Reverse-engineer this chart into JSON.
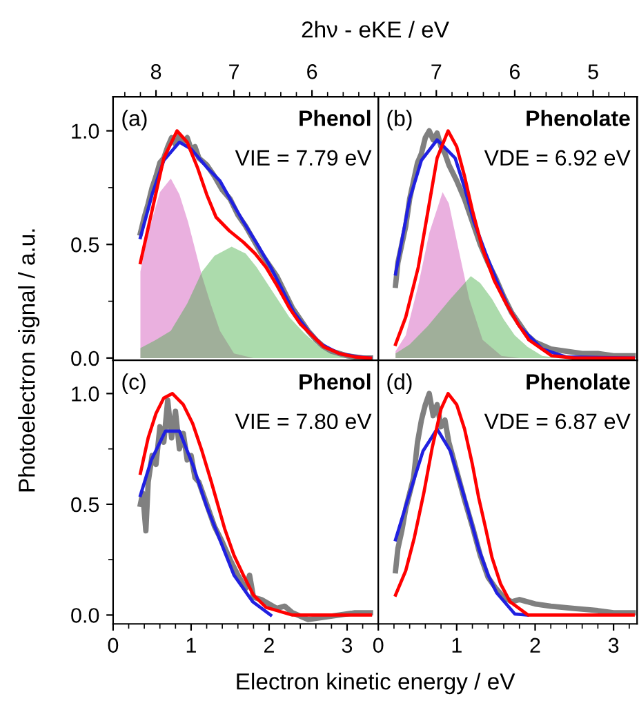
{
  "chart_data": [
    {
      "type": "line",
      "x2label": "2hν - eKE / eV",
      "ylabel": "Photoelectron signal / a.u.",
      "tick_labels": "y",
      "xlim": [
        0,
        3.4
      ],
      "ylim": [
        -0.01,
        1.15
      ],
      "yticks": [
        {
          "value": 0,
          "label": "0.0"
        },
        {
          "value": 0.25,
          "label": null
        },
        {
          "value": 0.5,
          "label": "0.5"
        },
        {
          "value": 0.75,
          "label": null
        },
        {
          "value": 1,
          "label": "1.0"
        }
      ],
      "x2lim": [
        8.55,
        5.15
      ],
      "x2ticks": [
        {
          "value": 8.4,
          "label": null
        },
        {
          "value": 8.2,
          "label": null
        },
        8,
        {
          "value": 7.8,
          "label": null
        },
        {
          "value": 7.6,
          "label": null
        },
        {
          "value": 7.4,
          "label": null
        },
        {
          "value": 7.2,
          "label": null
        },
        7,
        {
          "value": 6.8,
          "label": null
        },
        {
          "value": 6.6,
          "label": null
        },
        {
          "value": 6.4,
          "label": null
        },
        {
          "value": 6.2,
          "label": null
        },
        6,
        {
          "value": 5.8,
          "label": null
        },
        {
          "value": 5.6,
          "label": null
        },
        {
          "value": 5.4,
          "label": null
        },
        {
          "value": 5.2,
          "label": null
        }
      ],
      "annotations": [
        "(a)",
        "Phenol",
        "VIE = 7.79 eV"
      ],
      "series": [
        {
          "type": "area",
          "color": "#d050b8",
          "x": [
            0.35,
            0.45,
            0.6,
            0.74,
            0.85,
            0.96,
            1.05,
            1.14,
            1.25,
            1.37,
            1.55,
            1.8
          ],
          "values": [
            0.38,
            0.55,
            0.73,
            0.79,
            0.72,
            0.6,
            0.48,
            0.36,
            0.24,
            0.12,
            0.02,
            0
          ]
        },
        {
          "type": "area",
          "color": "#48b048",
          "x": [
            0.35,
            0.55,
            0.74,
            0.95,
            1.14,
            1.3,
            1.52,
            1.7,
            1.84,
            2.05,
            2.26,
            2.45,
            2.61,
            2.9,
            3.2
          ],
          "values": [
            0.044,
            0.08,
            0.12,
            0.24,
            0.38,
            0.45,
            0.49,
            0.46,
            0.4,
            0.29,
            0.18,
            0.11,
            0.06,
            0.01,
            0
          ]
        },
        {
          "color": "#808080",
          "x": [
            0.35,
            0.4,
            0.45,
            0.5,
            0.55,
            0.6,
            0.65,
            0.7,
            0.75,
            0.8,
            0.85,
            0.9,
            0.95,
            1.0,
            1.05,
            1.1,
            1.2,
            1.3,
            1.4,
            1.5,
            1.6,
            1.7,
            1.8,
            1.9,
            2.0,
            2.1,
            2.2,
            2.3,
            2.4,
            2.5,
            2.6,
            2.7,
            2.8,
            2.9,
            3.0,
            3.2,
            3.3
          ],
          "values": [
            0.55,
            0.62,
            0.68,
            0.75,
            0.8,
            0.86,
            0.88,
            0.93,
            0.97,
            0.94,
            0.98,
            0.95,
            0.97,
            0.92,
            0.93,
            0.88,
            0.85,
            0.8,
            0.74,
            0.7,
            0.63,
            0.58,
            0.52,
            0.46,
            0.41,
            0.36,
            0.29,
            0.22,
            0.17,
            0.12,
            0.08,
            0.05,
            0.03,
            0.02,
            0.01,
            0,
            0
          ]
        },
        {
          "color": "#2020e0",
          "x": [
            0.35,
            0.5,
            0.65,
            0.85,
            1.0,
            1.2,
            1.37,
            1.5,
            1.67,
            1.85,
            2.02,
            2.17,
            2.32,
            2.5,
            2.67,
            2.9,
            3.14,
            3.3
          ],
          "values": [
            0.53,
            0.72,
            0.87,
            0.95,
            0.92,
            0.84,
            0.78,
            0.7,
            0.6,
            0.5,
            0.4,
            0.3,
            0.2,
            0.12,
            0.06,
            0.02,
            0.005,
            0
          ]
        },
        {
          "color": "#ff0000",
          "x": [
            0.35,
            0.5,
            0.65,
            0.82,
            0.95,
            1.08,
            1.2,
            1.32,
            1.49,
            1.67,
            1.82,
            1.96,
            2.1,
            2.26,
            2.4,
            2.55,
            2.7,
            2.9,
            3.1,
            3.3
          ],
          "values": [
            0.42,
            0.65,
            0.88,
            1.0,
            0.95,
            0.84,
            0.72,
            0.62,
            0.56,
            0.51,
            0.46,
            0.4,
            0.32,
            0.22,
            0.15,
            0.1,
            0.05,
            0.02,
            0.005,
            0
          ]
        }
      ]
    },
    {
      "type": "line",
      "tick_labels": false,
      "xlim": [
        0,
        3.3
      ],
      "ylim": [
        -0.01,
        1.15
      ],
      "x2lim": [
        7.74,
        4.44
      ],
      "x2ticks": [
        {
          "value": 7.6,
          "label": null
        },
        {
          "value": 7.4,
          "label": null
        },
        {
          "value": 7.2,
          "label": null
        },
        7,
        {
          "value": 6.8,
          "label": null
        },
        {
          "value": 6.6,
          "label": null
        },
        {
          "value": 6.4,
          "label": null
        },
        {
          "value": 6.2,
          "label": null
        },
        6,
        {
          "value": 5.8,
          "label": null
        },
        {
          "value": 5.6,
          "label": null
        },
        {
          "value": 5.4,
          "label": null
        },
        {
          "value": 5.2,
          "label": null
        },
        5,
        {
          "value": 4.8,
          "label": null
        },
        {
          "value": 4.6,
          "label": null
        }
      ],
      "annotations": [
        "(b)",
        "Phenolate",
        "VDE = 6.92 eV"
      ],
      "series": [
        {
          "type": "area",
          "color": "#d050b8",
          "x": [
            0.22,
            0.35,
            0.51,
            0.65,
            0.82,
            0.9,
            1.01,
            1.16,
            1.33,
            1.57,
            1.8
          ],
          "values": [
            0.03,
            0.1,
            0.32,
            0.55,
            0.73,
            0.68,
            0.5,
            0.26,
            0.08,
            0.01,
            0
          ]
        },
        {
          "type": "area",
          "color": "#48b048",
          "x": [
            0.22,
            0.4,
            0.63,
            0.92,
            1.18,
            1.3,
            1.45,
            1.6,
            1.74,
            1.9,
            2.09,
            2.3
          ],
          "values": [
            0.02,
            0.06,
            0.14,
            0.26,
            0.36,
            0.33,
            0.26,
            0.17,
            0.1,
            0.05,
            0.01,
            0
          ]
        },
        {
          "color": "#808080",
          "x": [
            0.22,
            0.25,
            0.3,
            0.35,
            0.4,
            0.45,
            0.5,
            0.55,
            0.6,
            0.65,
            0.7,
            0.75,
            0.8,
            0.85,
            0.9,
            1.0,
            1.1,
            1.2,
            1.3,
            1.4,
            1.5,
            1.6,
            1.7,
            1.8,
            1.9,
            2.0,
            2.2,
            2.4,
            2.6,
            2.8,
            3.0,
            3.25
          ],
          "values": [
            0.32,
            0.42,
            0.5,
            0.58,
            0.7,
            0.78,
            0.86,
            0.9,
            0.97,
            1.0,
            0.96,
            0.99,
            0.93,
            0.9,
            0.85,
            0.78,
            0.7,
            0.6,
            0.5,
            0.42,
            0.35,
            0.27,
            0.2,
            0.15,
            0.1,
            0.07,
            0.04,
            0.03,
            0.02,
            0.02,
            0.01,
            0.01
          ]
        },
        {
          "color": "#2020e0",
          "x": [
            0.22,
            0.4,
            0.55,
            0.75,
            0.98,
            1.1,
            1.22,
            1.37,
            1.51,
            1.65,
            1.8,
            2.09,
            2.39,
            3.25
          ],
          "values": [
            0.37,
            0.7,
            0.87,
            0.96,
            0.88,
            0.75,
            0.6,
            0.46,
            0.34,
            0.23,
            0.14,
            0.04,
            0.005,
            0
          ]
        },
        {
          "color": "#ff0000",
          "x": [
            0.22,
            0.35,
            0.51,
            0.65,
            0.75,
            0.89,
            1.0,
            1.1,
            1.2,
            1.33,
            1.48,
            1.63,
            1.78,
            1.92,
            2.21,
            2.5,
            3.25
          ],
          "values": [
            0.06,
            0.18,
            0.4,
            0.68,
            0.88,
            1.0,
            0.93,
            0.8,
            0.65,
            0.48,
            0.34,
            0.24,
            0.15,
            0.08,
            0.01,
            0,
            0
          ]
        }
      ]
    },
    {
      "type": "line",
      "xlabel": "Electron kinetic energy / eV",
      "xlim": [
        0,
        3.4
      ],
      "ylim": [
        -0.04,
        1.15
      ],
      "xticks": [
        0,
        {
          "value": 0.2,
          "label": null
        },
        {
          "value": 0.4,
          "label": null
        },
        {
          "value": 0.6,
          "label": null
        },
        {
          "value": 0.8,
          "label": null
        },
        1,
        {
          "value": 1.2,
          "label": null
        },
        {
          "value": 1.4,
          "label": null
        },
        {
          "value": 1.6,
          "label": null
        },
        {
          "value": 1.8,
          "label": null
        },
        2,
        {
          "value": 2.2,
          "label": null
        },
        {
          "value": 2.4,
          "label": null
        },
        {
          "value": 2.6,
          "label": null
        },
        {
          "value": 2.8,
          "label": null
        },
        3,
        {
          "value": 3.2,
          "label": null
        }
      ],
      "yticks": [
        {
          "value": 0,
          "label": "0.0"
        },
        {
          "value": 0.25,
          "label": null
        },
        {
          "value": 0.5,
          "label": "0.5"
        },
        {
          "value": 0.75,
          "label": null
        },
        {
          "value": 1,
          "label": "1.0"
        }
      ],
      "annotations": [
        "(c)",
        "Phenol",
        "VIE = 7.80 eV"
      ],
      "series": [
        {
          "color": "#808080",
          "x": [
            0.35,
            0.38,
            0.42,
            0.45,
            0.5,
            0.55,
            0.6,
            0.65,
            0.7,
            0.75,
            0.8,
            0.85,
            0.9,
            0.95,
            1.0,
            1.05,
            1.1,
            1.15,
            1.2,
            1.3,
            1.4,
            1.5,
            1.6,
            1.7,
            1.75,
            1.8,
            1.9,
            2.0,
            2.1,
            2.2,
            2.3,
            2.5,
            2.7,
            2.9,
            3.1,
            3.3
          ],
          "values": [
            0.5,
            0.55,
            0.38,
            0.6,
            0.72,
            0.68,
            0.85,
            0.78,
            0.97,
            0.8,
            0.92,
            0.75,
            0.82,
            0.7,
            0.72,
            0.62,
            0.6,
            0.55,
            0.5,
            0.4,
            0.33,
            0.25,
            0.18,
            0.12,
            0.18,
            0.08,
            0.07,
            0.05,
            0.03,
            0.04,
            0.01,
            -0.02,
            -0.01,
            0,
            0.01,
            0.01
          ]
        },
        {
          "color": "#2020e0",
          "x": [
            0.35,
            0.49,
            0.67,
            0.85,
            1.02,
            1.2,
            1.38,
            1.55,
            1.79,
            2.02
          ],
          "values": [
            0.54,
            0.7,
            0.83,
            0.83,
            0.68,
            0.49,
            0.33,
            0.18,
            0.06,
            0
          ]
        },
        {
          "color": "#ff0000",
          "x": [
            0.35,
            0.45,
            0.55,
            0.65,
            0.76,
            0.9,
            1.02,
            1.14,
            1.26,
            1.43,
            1.55,
            1.67,
            1.8,
            1.96,
            2.3,
            3.3
          ],
          "values": [
            0.64,
            0.8,
            0.91,
            0.98,
            1.0,
            0.95,
            0.865,
            0.74,
            0.6,
            0.39,
            0.27,
            0.18,
            0.09,
            0.035,
            0,
            0
          ]
        }
      ]
    },
    {
      "type": "line",
      "tick_labels": "x",
      "xlim": [
        0,
        3.3
      ],
      "ylim": [
        -0.04,
        1.15
      ],
      "xticks": [
        0,
        {
          "value": 0.2,
          "label": null
        },
        {
          "value": 0.4,
          "label": null
        },
        {
          "value": 0.6,
          "label": null
        },
        {
          "value": 0.8,
          "label": null
        },
        1,
        {
          "value": 1.2,
          "label": null
        },
        {
          "value": 1.4,
          "label": null
        },
        {
          "value": 1.6,
          "label": null
        },
        {
          "value": 1.8,
          "label": null
        },
        2,
        {
          "value": 2.2,
          "label": null
        },
        {
          "value": 2.4,
          "label": null
        },
        {
          "value": 2.6,
          "label": null
        },
        {
          "value": 2.8,
          "label": null
        },
        3,
        {
          "value": 3.2,
          "label": null
        }
      ],
      "annotations": [
        "(d)",
        "Phenolate",
        "VDE = 6.87 eV"
      ],
      "series": [
        {
          "color": "#808080",
          "x": [
            0.22,
            0.25,
            0.3,
            0.35,
            0.4,
            0.45,
            0.5,
            0.55,
            0.6,
            0.65,
            0.7,
            0.75,
            0.8,
            0.85,
            0.9,
            1.0,
            1.1,
            1.2,
            1.3,
            1.4,
            1.5,
            1.6,
            1.7,
            1.8,
            2.0,
            2.2,
            2.5,
            2.8,
            3.0,
            3.25
          ],
          "values": [
            0.2,
            0.3,
            0.38,
            0.48,
            0.55,
            0.62,
            0.78,
            0.88,
            0.95,
            1.0,
            0.9,
            0.95,
            0.85,
            0.88,
            0.78,
            0.65,
            0.52,
            0.4,
            0.27,
            0.17,
            0.12,
            0.08,
            0.06,
            0.07,
            0.05,
            0.04,
            0.03,
            0.02,
            0.01,
            0.01
          ]
        },
        {
          "color": "#2020e0",
          "x": [
            0.22,
            0.4,
            0.57,
            0.75,
            0.92,
            1.1,
            1.28,
            1.4,
            1.51,
            1.74,
            1.9
          ],
          "values": [
            0.34,
            0.55,
            0.74,
            0.84,
            0.74,
            0.53,
            0.3,
            0.18,
            0.1,
            0.005,
            0
          ]
        },
        {
          "color": "#ff0000",
          "x": [
            0.22,
            0.35,
            0.46,
            0.58,
            0.69,
            0.8,
            0.89,
            1.0,
            1.1,
            1.2,
            1.28,
            1.37,
            1.45,
            1.56,
            1.68,
            1.91,
            3.25
          ],
          "values": [
            0.09,
            0.2,
            0.35,
            0.55,
            0.76,
            0.93,
            1.0,
            0.95,
            0.84,
            0.68,
            0.53,
            0.39,
            0.26,
            0.14,
            0.06,
            0,
            0
          ]
        }
      ]
    }
  ]
}
